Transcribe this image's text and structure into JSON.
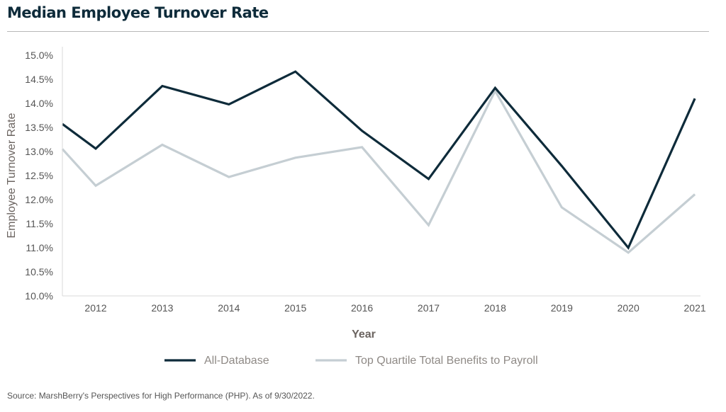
{
  "title": "Median Employee Turnover Rate",
  "source": "Source: MarshBerry's Perspectives for High Performance (PHP). As of 9/30/2022.",
  "chart_data": {
    "type": "line",
    "title": "Median Employee Turnover Rate",
    "xlabel": "Year",
    "ylabel": "Employee Turnover Rate",
    "x": [
      "2012",
      "2013",
      "2014",
      "2015",
      "2016",
      "2017",
      "2018",
      "2019",
      "2020",
      "2021"
    ],
    "ylim": [
      10.0,
      15.0
    ],
    "yticks": [
      10.0,
      10.5,
      11.0,
      11.5,
      12.0,
      12.5,
      13.0,
      13.5,
      14.0,
      14.5,
      15.0
    ],
    "ytick_labels": [
      "10.0%",
      "10.5%",
      "11.0%",
      "11.5%",
      "12.0%",
      "12.5%",
      "13.0%",
      "13.5%",
      "14.0%",
      "14.5%",
      "15.0%"
    ],
    "grid": false,
    "legend_position": "bottom",
    "series": [
      {
        "name": "All-Database",
        "color": "#0e2b3a",
        "start_value": 13.57,
        "values": [
          13.06,
          14.36,
          13.98,
          14.66,
          13.43,
          12.43,
          14.32,
          12.7,
          11.0,
          14.1
        ]
      },
      {
        "name": "Top Quartile Total Benefits to Payroll",
        "color": "#c5ced3",
        "start_value": 13.05,
        "values": [
          12.29,
          13.14,
          12.47,
          12.87,
          13.09,
          11.47,
          14.26,
          11.84,
          10.9,
          12.11
        ]
      }
    ]
  }
}
